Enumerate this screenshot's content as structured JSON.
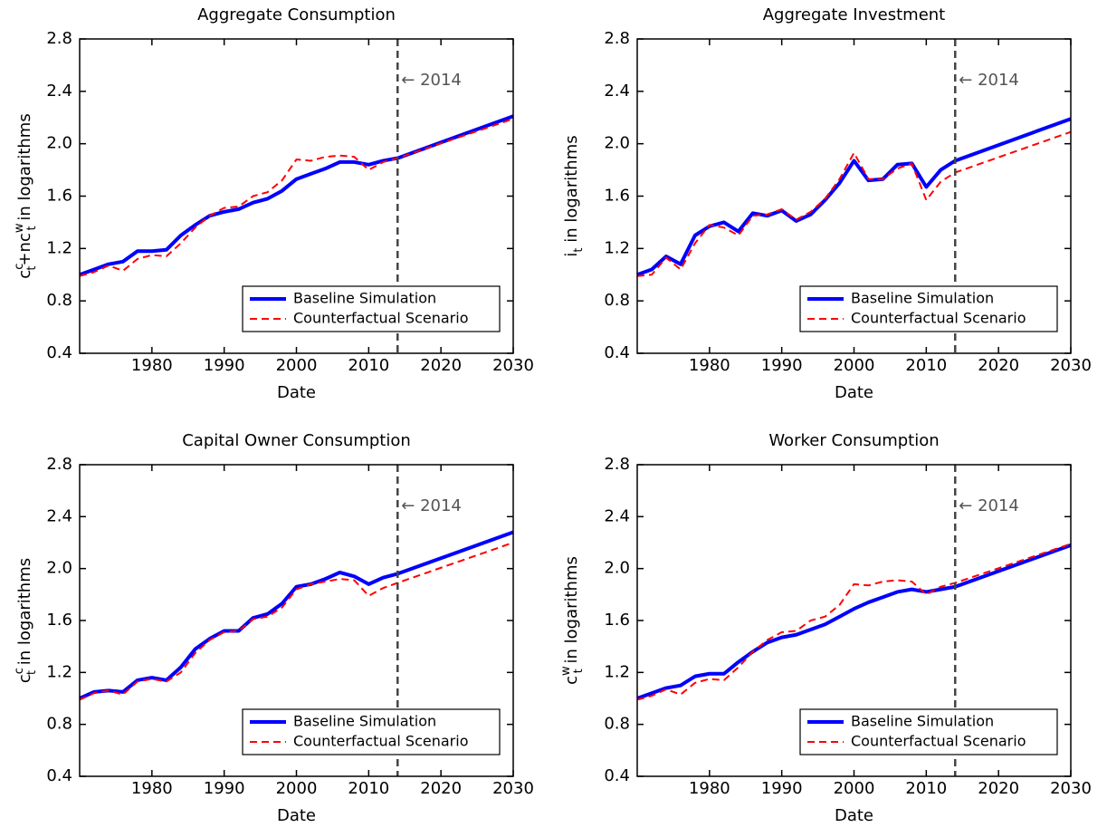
{
  "chart_data": [
    {
      "type": "line",
      "title": "Aggregate Consumption",
      "xlabel": "Date",
      "ylabel": "c_t^c+nc_t^w in logarithms",
      "x": [
        1970,
        1972,
        1974,
        1976,
        1978,
        1980,
        1982,
        1984,
        1986,
        1988,
        1990,
        1992,
        1994,
        1996,
        1998,
        2000,
        2002,
        2004,
        2006,
        2008,
        2010,
        2012,
        2014,
        2030
      ],
      "series": [
        {
          "name": "Baseline Simulation",
          "color": "#0000ff",
          "style": "solid",
          "values": [
            1.0,
            1.04,
            1.08,
            1.1,
            1.18,
            1.18,
            1.19,
            1.3,
            1.38,
            1.45,
            1.48,
            1.5,
            1.55,
            1.58,
            1.64,
            1.73,
            1.77,
            1.81,
            1.86,
            1.86,
            1.84,
            1.87,
            1.89,
            2.21
          ]
        },
        {
          "name": "Counterfactual Scenario",
          "color": "#ff0000",
          "style": "dashed",
          "values": [
            0.99,
            1.02,
            1.07,
            1.03,
            1.12,
            1.15,
            1.14,
            1.24,
            1.36,
            1.45,
            1.51,
            1.52,
            1.6,
            1.63,
            1.72,
            1.88,
            1.87,
            1.9,
            1.91,
            1.9,
            1.8,
            1.86,
            1.89,
            2.19
          ]
        }
      ],
      "xlim": [
        1970,
        2030
      ],
      "xticks": [
        1980,
        1990,
        2000,
        2010,
        2020,
        2030
      ],
      "ylim": [
        0.4,
        2.8
      ],
      "yticks": [
        0.4,
        0.8,
        1.2,
        1.6,
        {
          "value": 2,
          "label": "2.0"
        },
        2.4,
        2.8
      ],
      "vline": 2014,
      "annotation": "← 2014",
      "legend": "lower right"
    },
    {
      "type": "line",
      "title": "Aggregate Investment",
      "xlabel": "Date",
      "ylabel": "i_t in logarithms",
      "x": [
        1970,
        1972,
        1974,
        1976,
        1978,
        1980,
        1982,
        1984,
        1986,
        1988,
        1990,
        1992,
        1994,
        1996,
        1998,
        2000,
        2002,
        2004,
        2006,
        2008,
        2010,
        2012,
        2014,
        2030
      ],
      "series": [
        {
          "name": "Baseline Simulation",
          "color": "#0000ff",
          "style": "solid",
          "values": [
            1.0,
            1.04,
            1.14,
            1.08,
            1.3,
            1.37,
            1.4,
            1.33,
            1.47,
            1.45,
            1.49,
            1.41,
            1.46,
            1.57,
            1.7,
            1.87,
            1.72,
            1.73,
            1.84,
            1.85,
            1.67,
            1.8,
            1.87,
            2.19
          ]
        },
        {
          "name": "Counterfactual Scenario",
          "color": "#ff0000",
          "style": "dashed",
          "values": [
            0.99,
            1.0,
            1.13,
            1.04,
            1.24,
            1.38,
            1.36,
            1.3,
            1.45,
            1.46,
            1.5,
            1.42,
            1.48,
            1.58,
            1.73,
            1.93,
            1.73,
            1.73,
            1.81,
            1.85,
            1.57,
            1.71,
            1.78,
            2.09
          ]
        }
      ],
      "xlim": [
        1970,
        2030
      ],
      "xticks": [
        1980,
        1990,
        2000,
        2010,
        2020,
        2030
      ],
      "ylim": [
        0.4,
        2.8
      ],
      "yticks": [
        0.4,
        0.8,
        1.2,
        1.6,
        {
          "value": 2,
          "label": "2.0"
        },
        2.4,
        2.8
      ],
      "vline": 2014,
      "annotation": "← 2014",
      "legend": "lower right"
    },
    {
      "type": "line",
      "title": "Capital Owner Consumption",
      "xlabel": "Date",
      "ylabel": "c_t^c in logarithms",
      "x": [
        1970,
        1972,
        1974,
        1976,
        1978,
        1980,
        1982,
        1984,
        1986,
        1988,
        1990,
        1992,
        1994,
        1996,
        1998,
        2000,
        2002,
        2004,
        2006,
        2008,
        2010,
        2012,
        2014,
        2030
      ],
      "series": [
        {
          "name": "Baseline Simulation",
          "color": "#0000ff",
          "style": "solid",
          "values": [
            1.0,
            1.05,
            1.06,
            1.05,
            1.14,
            1.16,
            1.14,
            1.24,
            1.38,
            1.46,
            1.52,
            1.52,
            1.62,
            1.65,
            1.73,
            1.86,
            1.88,
            1.92,
            1.97,
            1.94,
            1.88,
            1.93,
            1.96,
            2.28
          ]
        },
        {
          "name": "Counterfactual Scenario",
          "color": "#ff0000",
          "style": "dashed",
          "values": [
            0.99,
            1.04,
            1.06,
            1.03,
            1.13,
            1.15,
            1.13,
            1.2,
            1.35,
            1.45,
            1.51,
            1.52,
            1.61,
            1.63,
            1.7,
            1.84,
            1.88,
            1.9,
            1.92,
            1.91,
            1.79,
            1.85,
            1.89,
            2.2
          ]
        }
      ],
      "xlim": [
        1970,
        2030
      ],
      "xticks": [
        1980,
        1990,
        2000,
        2010,
        2020,
        2030
      ],
      "ylim": [
        0.4,
        2.8
      ],
      "yticks": [
        0.4,
        0.8,
        1.2,
        1.6,
        {
          "value": 2,
          "label": "2.0"
        },
        2.4,
        2.8
      ],
      "vline": 2014,
      "annotation": "← 2014",
      "legend": "lower right"
    },
    {
      "type": "line",
      "title": "Worker Consumption",
      "xlabel": "Date",
      "ylabel": "c_t^w in logarithms",
      "x": [
        1970,
        1972,
        1974,
        1976,
        1978,
        1980,
        1982,
        1984,
        1986,
        1988,
        1990,
        1992,
        1994,
        1996,
        1998,
        2000,
        2002,
        2004,
        2006,
        2008,
        2010,
        2012,
        2014,
        2030
      ],
      "series": [
        {
          "name": "Baseline Simulation",
          "color": "#0000ff",
          "style": "solid",
          "values": [
            1.0,
            1.04,
            1.08,
            1.1,
            1.17,
            1.19,
            1.19,
            1.28,
            1.36,
            1.43,
            1.47,
            1.49,
            1.53,
            1.57,
            1.63,
            1.69,
            1.74,
            1.78,
            1.82,
            1.84,
            1.82,
            1.84,
            1.86,
            2.18
          ]
        },
        {
          "name": "Counterfactual Scenario",
          "color": "#ff0000",
          "style": "dashed",
          "values": [
            0.99,
            1.02,
            1.07,
            1.03,
            1.12,
            1.15,
            1.14,
            1.24,
            1.36,
            1.45,
            1.51,
            1.52,
            1.6,
            1.63,
            1.72,
            1.88,
            1.87,
            1.9,
            1.91,
            1.9,
            1.8,
            1.86,
            1.89,
            2.19
          ]
        }
      ],
      "xlim": [
        1970,
        2030
      ],
      "xticks": [
        1980,
        1990,
        2000,
        2010,
        2020,
        2030
      ],
      "ylim": [
        0.4,
        2.8
      ],
      "yticks": [
        0.4,
        0.8,
        1.2,
        1.6,
        {
          "value": 2,
          "label": "2.0"
        },
        2.4,
        2.8
      ],
      "vline": 2014,
      "annotation": "← 2014",
      "legend": "lower right"
    }
  ]
}
